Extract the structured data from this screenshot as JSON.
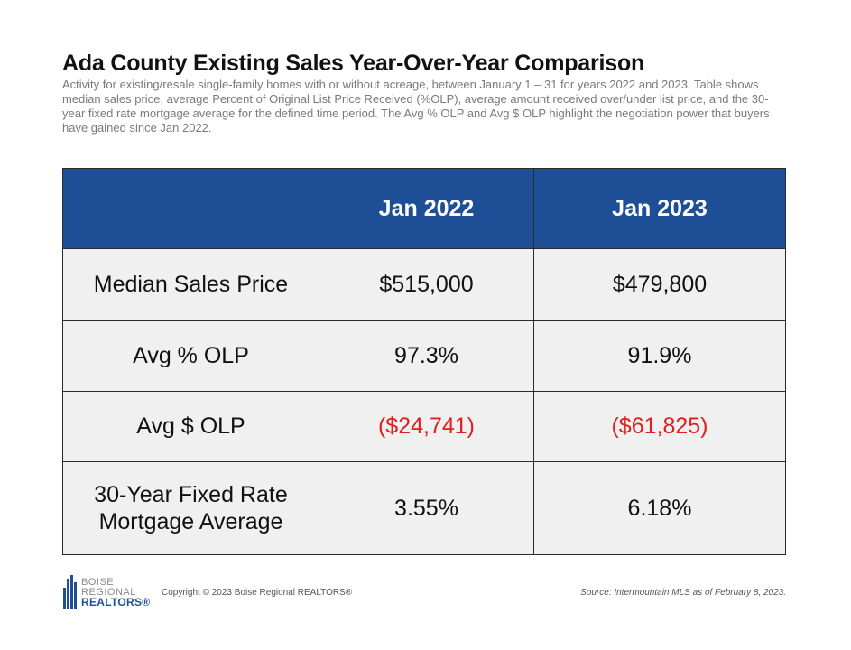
{
  "header": {
    "title": "Ada County Existing Sales Year-Over-Year Comparison",
    "subtitle": "Activity for existing/resale single-family homes with or without acreage, between January 1 – 31 for years 2022 and 2023. Table shows median sales price, average Percent of Original List Price Received (%OLP), average amount received over/under list price, and the 30-year fixed rate mortgage average for the defined time period. The Avg % OLP and Avg $ OLP highlight the negotiation power that buyers have gained since Jan 2022."
  },
  "table": {
    "columns": [
      "",
      "Jan 2022",
      "Jan 2023"
    ],
    "rows": [
      {
        "label": "Median Sales Price",
        "jan2022": "$515,000",
        "jan2023": "$479,800"
      },
      {
        "label": "Avg % OLP",
        "jan2022": "97.3%",
        "jan2023": "91.9%"
      },
      {
        "label": "Avg $ OLP",
        "jan2022": "($24,741)",
        "jan2023": "($61,825)"
      },
      {
        "label_line1": "30-Year Fixed Rate",
        "label_line2": "Mortgage Average",
        "jan2022": "3.55%",
        "jan2023": "6.18%"
      }
    ],
    "colors": {
      "header_bg": "#1e4f96",
      "header_text": "#ffffff",
      "cell_bg": "#f0f0f0",
      "negative": "#e02020"
    }
  },
  "footer": {
    "logo": {
      "line1": "BOISE",
      "line2": "REGIONAL",
      "line3": "REALTORS®"
    },
    "copyright": "Copyright © 2023 Boise Regional REALTORS®",
    "source": "Source: Intermountain MLS as of February 8, 2023."
  }
}
